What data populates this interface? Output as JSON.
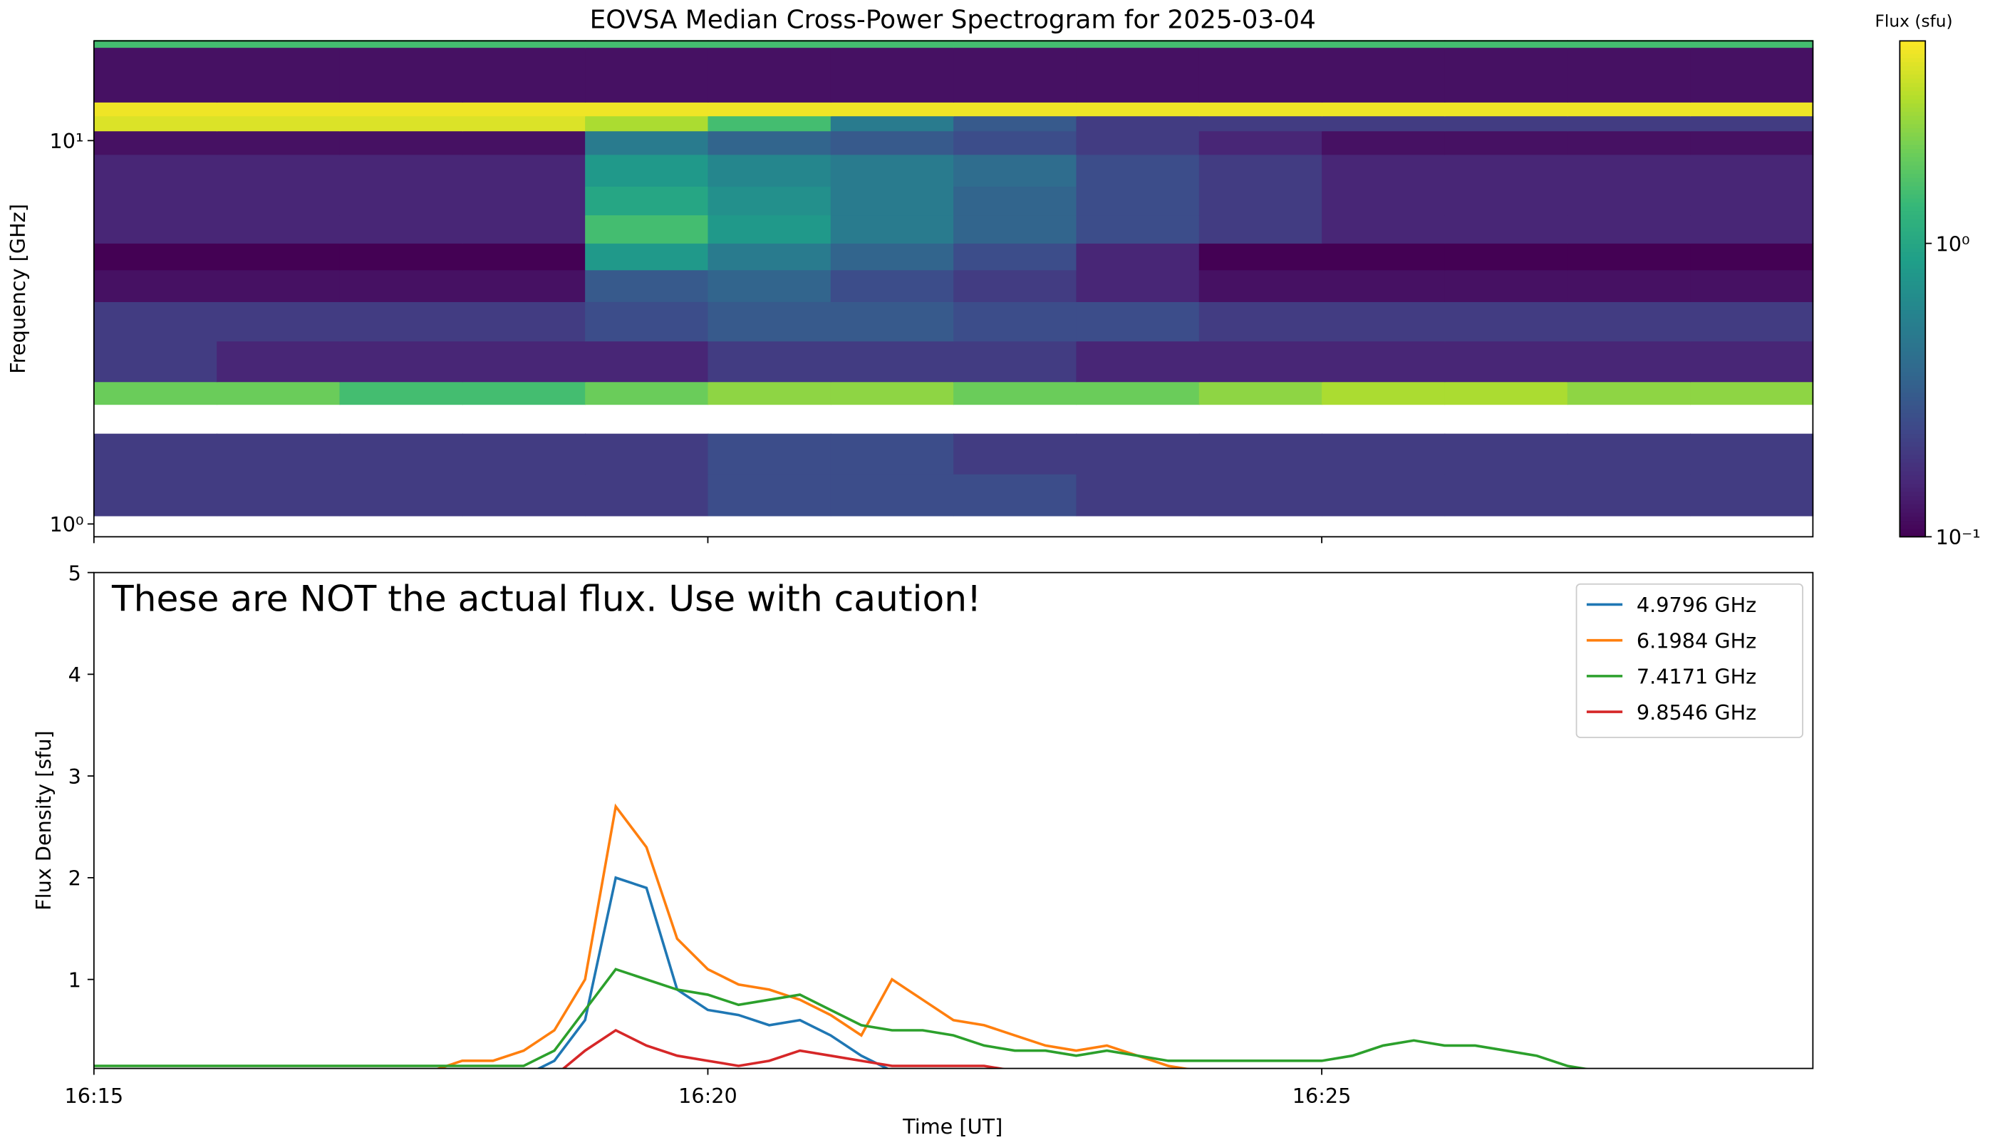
{
  "chart_data": [
    {
      "type": "heatmap",
      "title": "EOVSA Median Cross-Power Spectrogram for 2025-03-04",
      "ylabel": "Frequency [GHz]",
      "x_bins": [
        "16:15",
        "16:16",
        "16:17",
        "16:18",
        "16:19",
        "16:20",
        "16:21",
        "16:22",
        "16:23",
        "16:24",
        "16:25",
        "16:26",
        "16:27",
        "16:28",
        "16:29"
      ],
      "y_bins": [
        1.05,
        1.35,
        1.72,
        2.05,
        2.35,
        3.0,
        3.8,
        4.6,
        5.4,
        6.4,
        7.6,
        9.2,
        10.6,
        11.6,
        12.6,
        17.5,
        18.3
      ],
      "values": [
        [
          0.2,
          0.2,
          0.2,
          0.2,
          0.2,
          0.25,
          0.25,
          0.25,
          0.2,
          0.2,
          0.2,
          0.2,
          0.2,
          0.2
        ],
        [
          0.2,
          0.2,
          0.2,
          0.2,
          0.2,
          0.25,
          0.25,
          0.2,
          0.2,
          0.2,
          0.2,
          0.2,
          0.2,
          0.2
        ],
        [
          null,
          null,
          null,
          null,
          null,
          null,
          null,
          null,
          null,
          null,
          null,
          null,
          null,
          null
        ],
        [
          2,
          2,
          1.5,
          1.5,
          2,
          2.5,
          2.5,
          2,
          2,
          2.5,
          3,
          3,
          2.5,
          2.5
        ],
        [
          0.2,
          0.15,
          0.15,
          0.15,
          0.15,
          0.2,
          0.2,
          0.2,
          0.15,
          0.15,
          0.15,
          0.15,
          0.15,
          0.15
        ],
        [
          0.2,
          0.2,
          0.2,
          0.2,
          0.25,
          0.3,
          0.3,
          0.25,
          0.25,
          0.2,
          0.2,
          0.2,
          0.2,
          0.2
        ],
        [
          0.12,
          0.12,
          0.12,
          0.12,
          0.3,
          0.35,
          0.25,
          0.2,
          0.15,
          0.12,
          0.12,
          0.12,
          0.12,
          0.12
        ],
        [
          0.1,
          0.1,
          0.1,
          0.1,
          0.8,
          0.5,
          0.35,
          0.25,
          0.15,
          0.1,
          0.1,
          0.1,
          0.1,
          0.1
        ],
        [
          0.15,
          0.15,
          0.15,
          0.15,
          1.5,
          0.8,
          0.5,
          0.35,
          0.25,
          0.2,
          0.15,
          0.15,
          0.15,
          0.15
        ],
        [
          0.15,
          0.15,
          0.15,
          0.15,
          1.0,
          0.7,
          0.5,
          0.35,
          0.25,
          0.2,
          0.15,
          0.15,
          0.15,
          0.15
        ],
        [
          0.15,
          0.15,
          0.15,
          0.15,
          0.8,
          0.6,
          0.5,
          0.4,
          0.25,
          0.2,
          0.15,
          0.15,
          0.15,
          0.15
        ],
        [
          0.12,
          0.12,
          0.12,
          0.12,
          0.5,
          0.35,
          0.3,
          0.25,
          0.2,
          0.15,
          0.12,
          0.12,
          0.12,
          0.12
        ],
        [
          4,
          4,
          4,
          4,
          3,
          1.5,
          0.5,
          0.3,
          0.2,
          0.2,
          0.2,
          0.2,
          0.2,
          0.2
        ],
        [
          4.5,
          4.5,
          4.5,
          4.5,
          4.5,
          4.5,
          4.5,
          4.5,
          4.5,
          4.5,
          4.5,
          4.5,
          4.5,
          4.5
        ],
        [
          0.12,
          0.12,
          0.12,
          0.12,
          0.12,
          0.12,
          0.12,
          0.12,
          0.12,
          0.12,
          0.12,
          0.12,
          0.12,
          0.12
        ],
        [
          1.5,
          1.5,
          1.5,
          1.5,
          1.5,
          1.5,
          1.5,
          1.5,
          1.5,
          1.5,
          1.5,
          1.5,
          1.5,
          1.5
        ]
      ],
      "xlim": [
        "16:15",
        "16:29"
      ],
      "ylim": [
        0.926,
        18.2
      ],
      "log_y": true,
      "yticks": [
        {
          "value": 1,
          "label": "10⁰"
        },
        {
          "value": 10,
          "label": "10¹"
        }
      ],
      "colorbar": {
        "label": "Flux (sfu)",
        "cmap": "viridis",
        "log": true,
        "clim": [
          0.1,
          4.9
        ],
        "ticks": [
          {
            "value": 0.1,
            "label": "10⁻¹"
          },
          {
            "value": 1,
            "label": "10⁰"
          }
        ]
      }
    },
    {
      "type": "line",
      "xlabel": "Time [UT]",
      "ylabel": "Flux Density [sfu]",
      "annotation": "These are NOT the actual flux. Use with caution!",
      "x": [
        "16:15:00",
        "16:15:15",
        "16:15:30",
        "16:15:45",
        "16:16:00",
        "16:16:15",
        "16:16:30",
        "16:16:45",
        "16:17:00",
        "16:17:15",
        "16:17:30",
        "16:17:45",
        "16:18:00",
        "16:18:15",
        "16:18:30",
        "16:18:45",
        "16:19:00",
        "16:19:15",
        "16:19:30",
        "16:19:45",
        "16:20:00",
        "16:20:15",
        "16:20:30",
        "16:20:45",
        "16:21:00",
        "16:21:15",
        "16:21:30",
        "16:21:45",
        "16:22:00",
        "16:22:15",
        "16:22:30",
        "16:22:45",
        "16:23:00",
        "16:23:15",
        "16:23:30",
        "16:23:45",
        "16:24:00",
        "16:24:15",
        "16:24:30",
        "16:24:45",
        "16:25:00",
        "16:25:15",
        "16:25:30",
        "16:25:45",
        "16:26:00",
        "16:26:15",
        "16:26:30",
        "16:26:45",
        "16:27:00",
        "16:27:15",
        "16:27:30"
      ],
      "series": [
        {
          "name": "4.9796 GHz",
          "color": "#1f77b4",
          "values": [
            0.05,
            0.05,
            0.05,
            0.05,
            0.05,
            0.05,
            0.05,
            0.05,
            0.05,
            0.05,
            0.05,
            0.05,
            0.05,
            0.05,
            0.05,
            0.2,
            0.6,
            2.0,
            1.9,
            0.9,
            0.7,
            0.65,
            0.55,
            0.6,
            0.45,
            0.25,
            0.1,
            0.05,
            0.05,
            0.05,
            0.05,
            0.05,
            0.05,
            0.05,
            0.05,
            0.05,
            0.05,
            0.05,
            0.05,
            0.05,
            0.05,
            0.05,
            0.05,
            0.05,
            0.05,
            0.05,
            0.05,
            0.05,
            0.05,
            0.05,
            0.05
          ]
        },
        {
          "name": "6.1984 GHz",
          "color": "#ff7f0e",
          "values": [
            0.1,
            0.1,
            0.1,
            0.1,
            0.1,
            0.1,
            0.1,
            0.1,
            0.1,
            0.1,
            0.1,
            0.1,
            0.2,
            0.2,
            0.3,
            0.5,
            1.0,
            2.7,
            2.3,
            1.4,
            1.1,
            0.95,
            0.9,
            0.8,
            0.65,
            0.45,
            1.0,
            0.8,
            0.6,
            0.55,
            0.45,
            0.35,
            0.3,
            0.35,
            0.25,
            0.15,
            0.1,
            0.1,
            0.1,
            0.1,
            0.1,
            0.1,
            0.1,
            0.1,
            0.1,
            0.1,
            0.1,
            0.1,
            0.1,
            0.1,
            0.1
          ]
        },
        {
          "name": "7.4171 GHz",
          "color": "#2ca02c",
          "values": [
            0.15,
            0.15,
            0.15,
            0.15,
            0.15,
            0.15,
            0.15,
            0.15,
            0.15,
            0.15,
            0.15,
            0.15,
            0.15,
            0.15,
            0.15,
            0.3,
            0.7,
            1.1,
            1.0,
            0.9,
            0.85,
            0.75,
            0.8,
            0.85,
            0.7,
            0.55,
            0.5,
            0.5,
            0.45,
            0.35,
            0.3,
            0.3,
            0.25,
            0.3,
            0.25,
            0.2,
            0.2,
            0.2,
            0.2,
            0.2,
            0.2,
            0.25,
            0.35,
            0.4,
            0.35,
            0.35,
            0.3,
            0.25,
            0.15,
            0.1,
            0.1
          ]
        },
        {
          "name": "9.8546 GHz",
          "color": "#d62728",
          "values": [
            0.05,
            0.05,
            0.05,
            0.05,
            0.05,
            0.05,
            0.05,
            0.05,
            0.05,
            0.05,
            0.05,
            0.05,
            0.05,
            0.05,
            0.05,
            0.05,
            0.3,
            0.5,
            0.35,
            0.25,
            0.2,
            0.15,
            0.2,
            0.3,
            0.25,
            0.2,
            0.15,
            0.15,
            0.15,
            0.15,
            0.1,
            0.1,
            0.1,
            0.1,
            0.1,
            0.1,
            0.1,
            0.1,
            0.1,
            0.1,
            0.1,
            0.1,
            0.1,
            0.1,
            0.1,
            0.1,
            0.1,
            0.1,
            0.1,
            0.1,
            0.1
          ]
        }
      ],
      "xlim": [
        "16:15:00",
        "16:29:00"
      ],
      "xticks": [
        "16:15",
        "16:20",
        "16:25"
      ],
      "ylim": [
        0.125,
        5
      ],
      "yticks": [
        1,
        2,
        3,
        4,
        5
      ],
      "legend": "upper right"
    }
  ]
}
